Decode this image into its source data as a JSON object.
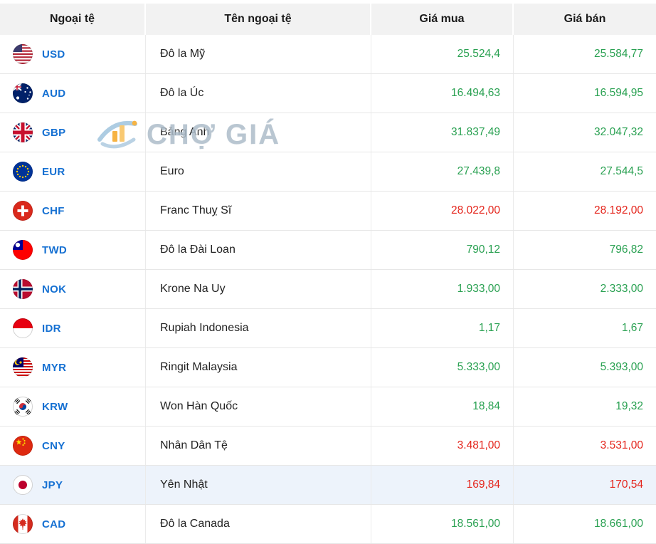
{
  "colors": {
    "up": "#2aa152",
    "down": "#e4251c",
    "code": "#1570d2",
    "highlight": "#edf3fb",
    "header_bg": "#f2f2f2"
  },
  "watermark": {
    "text": "CHỢ GIÁ"
  },
  "table": {
    "headers": {
      "currency": "Ngoại tệ",
      "name": "Tên ngoại tệ",
      "buy": "Giá mua",
      "sell": "Giá bán"
    }
  },
  "rows": [
    {
      "code": "USD",
      "flag": "us",
      "flag_icon": "usd-us-flag-icon",
      "name": "Đô la Mỹ",
      "buy": "25.524,4",
      "sell": "25.584,77",
      "trend": "up",
      "highlighted": false
    },
    {
      "code": "AUD",
      "flag": "au",
      "flag_icon": "aud-australia-flag-icon",
      "name": "Đô la Úc",
      "buy": "16.494,63",
      "sell": "16.594,95",
      "trend": "up",
      "highlighted": false
    },
    {
      "code": "GBP",
      "flag": "gb",
      "flag_icon": "gbp-uk-flag-icon",
      "name": "Bảng Anh",
      "buy": "31.837,49",
      "sell": "32.047,32",
      "trend": "up",
      "highlighted": false
    },
    {
      "code": "EUR",
      "flag": "eu",
      "flag_icon": "eur-eu-flag-icon",
      "name": "Euro",
      "buy": "27.439,8",
      "sell": "27.544,5",
      "trend": "up",
      "highlighted": false
    },
    {
      "code": "CHF",
      "flag": "ch",
      "flag_icon": "chf-switzerland-flag-icon",
      "name": "Franc Thuỵ Sĩ",
      "buy": "28.022,00",
      "sell": "28.192,00",
      "trend": "down",
      "highlighted": false
    },
    {
      "code": "TWD",
      "flag": "tw",
      "flag_icon": "twd-taiwan-flag-icon",
      "name": "Đô la Đài Loan",
      "buy": "790,12",
      "sell": "796,82",
      "trend": "up",
      "highlighted": false
    },
    {
      "code": "NOK",
      "flag": "no",
      "flag_icon": "nok-norway-flag-icon",
      "name": "Krone Na Uy",
      "buy": "1.933,00",
      "sell": "2.333,00",
      "trend": "up",
      "highlighted": false
    },
    {
      "code": "IDR",
      "flag": "id",
      "flag_icon": "idr-indonesia-flag-icon",
      "name": "Rupiah Indonesia",
      "buy": "1,17",
      "sell": "1,67",
      "trend": "up",
      "highlighted": false
    },
    {
      "code": "MYR",
      "flag": "my",
      "flag_icon": "myr-malaysia-flag-icon",
      "name": "Ringit Malaysia",
      "buy": "5.333,00",
      "sell": "5.393,00",
      "trend": "up",
      "highlighted": false
    },
    {
      "code": "KRW",
      "flag": "kr",
      "flag_icon": "krw-south-korea-flag-icon",
      "name": "Won Hàn Quốc",
      "buy": "18,84",
      "sell": "19,32",
      "trend": "up",
      "highlighted": false
    },
    {
      "code": "CNY",
      "flag": "cn",
      "flag_icon": "cny-china-flag-icon",
      "name": "Nhân Dân Tệ",
      "buy": "3.481,00",
      "sell": "3.531,00",
      "trend": "down",
      "highlighted": false
    },
    {
      "code": "JPY",
      "flag": "jp",
      "flag_icon": "jpy-japan-flag-icon",
      "name": "Yên Nhật",
      "buy": "169,84",
      "sell": "170,54",
      "trend": "down",
      "highlighted": true
    },
    {
      "code": "CAD",
      "flag": "ca",
      "flag_icon": "cad-canada-flag-icon",
      "name": "Đô la Canada",
      "buy": "18.561,00",
      "sell": "18.661,00",
      "trend": "up",
      "highlighted": false
    }
  ]
}
